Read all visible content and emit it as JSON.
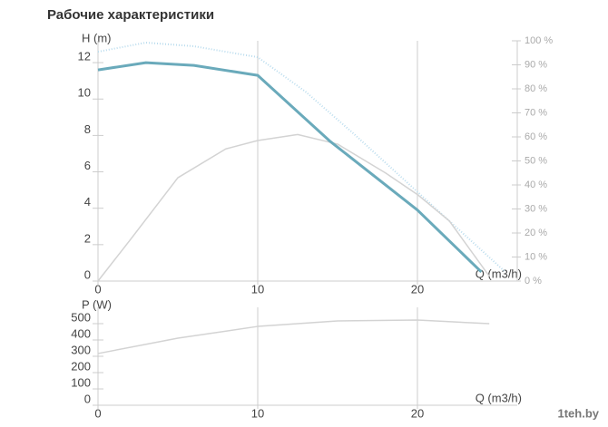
{
  "title": "Рабочие характеристики",
  "watermark": "1teh.by",
  "chart_data": [
    {
      "type": "line",
      "ylabel": "H (m)",
      "xlabel": "Q (m3/h)",
      "xlim": [
        0,
        26.25
      ],
      "xticks": [
        0,
        10,
        20
      ],
      "ylim": [
        0,
        13.2
      ],
      "yticks": [
        0,
        2,
        4,
        6,
        8,
        10,
        12
      ],
      "y2lim": [
        0,
        100
      ],
      "y2ticks": [
        {
          "value": 0,
          "label": "0 %"
        },
        {
          "value": 10,
          "label": "10 %"
        },
        {
          "value": 20,
          "label": "20 %"
        },
        {
          "value": 30,
          "label": "30 %"
        },
        {
          "value": 40,
          "label": "40 %"
        },
        {
          "value": 50,
          "label": "50 %"
        },
        {
          "value": 60,
          "label": "60 %"
        },
        {
          "value": 70,
          "label": "70 %"
        },
        {
          "value": 80,
          "label": "80 %"
        },
        {
          "value": 90,
          "label": "90 %"
        },
        {
          "value": 100,
          "label": "100 %"
        }
      ],
      "series": [
        {
          "color": "#b9dcee",
          "style": "dotted",
          "width": 2,
          "x": [
            0,
            3,
            6,
            10,
            13,
            16,
            19,
            22,
            25.5
          ],
          "values": [
            12.6,
            13.1,
            12.9,
            12.3,
            10.4,
            8.1,
            5.7,
            3.3,
            0.5
          ]
        },
        {
          "color": "#d3d3d3",
          "style": "solid",
          "width": 1.5,
          "axis": "y2",
          "x": [
            0,
            2,
            5,
            8,
            10,
            12.5,
            15,
            18,
            20,
            22,
            24.5
          ],
          "values": [
            0,
            17,
            43,
            55,
            58.5,
            61,
            57,
            45,
            36,
            25,
            2
          ]
        },
        {
          "color": "#6aaabb",
          "style": "solid",
          "width": 3,
          "x": [
            0,
            3,
            6,
            10,
            14.5,
            20,
            24
          ],
          "values": [
            11.6,
            12.0,
            11.85,
            11.3,
            7.7,
            3.9,
            0.5
          ]
        }
      ]
    },
    {
      "type": "line",
      "ylabel": "P (W)",
      "xlabel": "Q (m3/h)",
      "xlim": [
        0,
        26.25
      ],
      "xticks": [
        0,
        10,
        20
      ],
      "ylim": [
        0,
        600
      ],
      "yticks": [
        0,
        100,
        200,
        300,
        400,
        500
      ],
      "series": [
        {
          "color": "#d3d3d3",
          "style": "solid",
          "width": 1.5,
          "x": [
            0,
            5,
            10,
            15,
            20,
            24.5
          ],
          "values": [
            317,
            411,
            483,
            517,
            522,
            500
          ]
        }
      ]
    }
  ]
}
